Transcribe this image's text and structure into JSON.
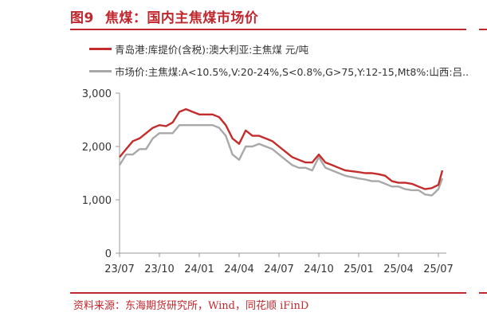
{
  "figure": {
    "label": "图9",
    "title": "焦煤：国内主焦煤市场价",
    "source": "资料来源：东海期货研究所，Wind，同花顺 iFinD"
  },
  "colors": {
    "accent": "#c0272d",
    "series_red": "#c42b2b",
    "series_gray": "#a8a8a8",
    "axis": "#999999",
    "text": "#333333"
  },
  "chart_data": {
    "type": "line",
    "title": "焦煤：国内主焦煤市场价",
    "xlabel": "",
    "ylabel": "",
    "ylim": [
      0,
      3000
    ],
    "yticks": [
      0,
      1000,
      2000,
      3000
    ],
    "ytick_labels": [
      "0",
      "1,000",
      "2,000",
      "3,000"
    ],
    "xtick_labels": [
      "23/07",
      "23/10",
      "24/01",
      "24/04",
      "24/07",
      "24/10",
      "25/01",
      "25/04",
      "25/07"
    ],
    "legend_position": "top",
    "grid": false,
    "series": [
      {
        "name": "青岛港:库提价(含税):澳大利亚:主焦煤 元/吨",
        "color": "#c42b2b",
        "points": [
          [
            "23/07",
            1800
          ],
          [
            "23/07.5",
            1950
          ],
          [
            "23/08",
            2100
          ],
          [
            "23/08.5",
            2150
          ],
          [
            "23/09",
            2250
          ],
          [
            "23/09.5",
            2350
          ],
          [
            "23/10",
            2400
          ],
          [
            "23/10.5",
            2380
          ],
          [
            "23/11",
            2450
          ],
          [
            "23/11.5",
            2650
          ],
          [
            "23/12",
            2700
          ],
          [
            "23/12.5",
            2650
          ],
          [
            "24/01",
            2600
          ],
          [
            "24/01.5",
            2600
          ],
          [
            "24/02",
            2600
          ],
          [
            "24/02.5",
            2550
          ],
          [
            "24/03",
            2400
          ],
          [
            "24/03.5",
            2150
          ],
          [
            "24/04",
            2050
          ],
          [
            "24/04.5",
            2300
          ],
          [
            "24/05",
            2200
          ],
          [
            "24/05.5",
            2200
          ],
          [
            "24/06",
            2150
          ],
          [
            "24/06.5",
            2100
          ],
          [
            "24/07",
            2000
          ],
          [
            "24/07.5",
            1900
          ],
          [
            "24/08",
            1800
          ],
          [
            "24/08.5",
            1750
          ],
          [
            "24/09",
            1700
          ],
          [
            "24/09.5",
            1700
          ],
          [
            "24/10",
            1850
          ],
          [
            "24/10.5",
            1700
          ],
          [
            "24/11",
            1650
          ],
          [
            "24/11.5",
            1600
          ],
          [
            "24/12",
            1550
          ],
          [
            "25/01",
            1520
          ],
          [
            "25/01.5",
            1500
          ],
          [
            "25/02",
            1500
          ],
          [
            "25/02.5",
            1480
          ],
          [
            "25/03",
            1450
          ],
          [
            "25/03.5",
            1350
          ],
          [
            "25/04",
            1320
          ],
          [
            "25/04.5",
            1320
          ],
          [
            "25/05",
            1300
          ],
          [
            "25/05.5",
            1250
          ],
          [
            "25/06",
            1200
          ],
          [
            "25/06.5",
            1220
          ],
          [
            "25/07",
            1280
          ],
          [
            "25/07.3",
            1550
          ]
        ]
      },
      {
        "name": "市场价:主焦煤:A<10.5%,V:20-24%,S<0.8%,G>75,Y:12-15,Mt8%:山西:吕...",
        "color": "#a8a8a8",
        "points": [
          [
            "23/07",
            1650
          ],
          [
            "23/07.5",
            1850
          ],
          [
            "23/08",
            1850
          ],
          [
            "23/08.5",
            1950
          ],
          [
            "23/09",
            1950
          ],
          [
            "23/09.5",
            2150
          ],
          [
            "23/10",
            2250
          ],
          [
            "23/10.5",
            2250
          ],
          [
            "23/11",
            2250
          ],
          [
            "23/11.5",
            2400
          ],
          [
            "23/12",
            2400
          ],
          [
            "23/12.5",
            2400
          ],
          [
            "24/01",
            2400
          ],
          [
            "24/01.5",
            2400
          ],
          [
            "24/02",
            2400
          ],
          [
            "24/02.5",
            2350
          ],
          [
            "24/03",
            2200
          ],
          [
            "24/03.5",
            1850
          ],
          [
            "24/04",
            1750
          ],
          [
            "24/04.5",
            2000
          ],
          [
            "24/05",
            2000
          ],
          [
            "24/05.5",
            2050
          ],
          [
            "24/06",
            2000
          ],
          [
            "24/06.5",
            1950
          ],
          [
            "24/07",
            1850
          ],
          [
            "24/07.5",
            1750
          ],
          [
            "24/08",
            1650
          ],
          [
            "24/08.5",
            1600
          ],
          [
            "24/09",
            1600
          ],
          [
            "24/09.5",
            1550
          ],
          [
            "24/10",
            1800
          ],
          [
            "24/10.5",
            1600
          ],
          [
            "24/11",
            1550
          ],
          [
            "24/11.5",
            1500
          ],
          [
            "24/12",
            1450
          ],
          [
            "25/01",
            1400
          ],
          [
            "25/01.5",
            1380
          ],
          [
            "25/02",
            1350
          ],
          [
            "25/02.5",
            1350
          ],
          [
            "25/03",
            1300
          ],
          [
            "25/03.5",
            1250
          ],
          [
            "25/04",
            1250
          ],
          [
            "25/04.5",
            1200
          ],
          [
            "25/05",
            1180
          ],
          [
            "25/05.5",
            1180
          ],
          [
            "25/06",
            1100
          ],
          [
            "25/06.5",
            1080
          ],
          [
            "25/07",
            1200
          ],
          [
            "25/07.3",
            1400
          ]
        ]
      }
    ]
  }
}
